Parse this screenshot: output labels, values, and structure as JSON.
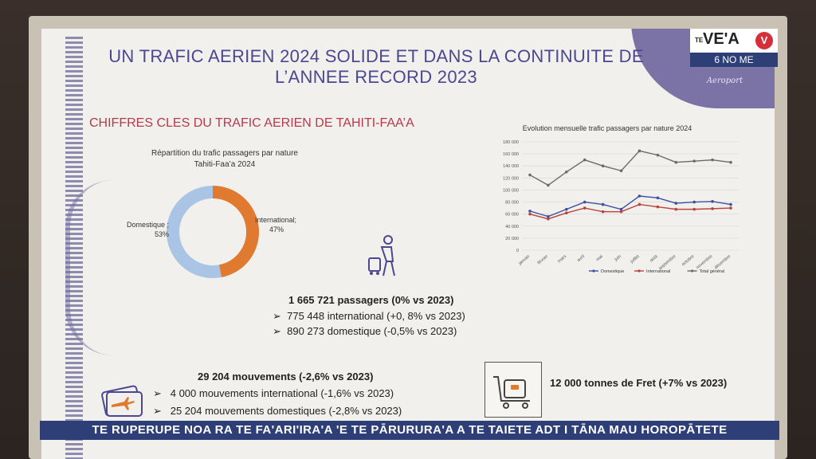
{
  "slide": {
    "title_line1": "UN TRAFIC AERIEN 2024 SOLIDE ET  DANS LA CONTINUITE DE",
    "title_line2": "L’ANNEE RECORD 2023",
    "subtitle": "CHIFFRES CLES DU TRAFIC AERIEN DE TAHITI-FAA’A"
  },
  "stats": {
    "passengers_total": "1 665 721 passagers (0% vs 2023)",
    "passengers_international": "775 448 international (+0, 8% vs 2023)",
    "passengers_domestic": "890 273 domestique (-0,5% vs 2023)",
    "movements_total": "29 204 mouvements (-2,6% vs 2023)",
    "movements_international": "4 000 mouvements international (-1,6% vs 2023)",
    "movements_domestic": "25 204 mouvements domestiques (-2,8% vs 2023)",
    "freight": "12 000 tonnes de Fret (+7% vs 2023)"
  },
  "ticker": "TE RUPERUPE NOA RA TE FA'ARI'IRA'A 'E TE PĀRURURA'A A TE TAIETE ADT I TĀNA MAU HOROPĀTETE",
  "broadcaster": {
    "te": "TE",
    "name": "VE'A",
    "badge": "V",
    "sub": "6 NO ME"
  },
  "colors": {
    "title": "#4b4791",
    "subtitle": "#b53a4e",
    "domestic": "#3f4fa0",
    "international": "#b8433e",
    "total": "#6b6b6b",
    "donut_domestic": "#a9c4e4",
    "donut_international": "#e07a30",
    "ticker_bg": "#2e3f78"
  },
  "chart_data": [
    {
      "type": "pie",
      "title_line1": "Répartition du trafic passagers par nature",
      "title_line2": "Tahiti-Faa’a 2024",
      "slices": [
        {
          "name": "Domestique",
          "value": 53,
          "label_line1": "Domestique ;",
          "label_line2": "53%"
        },
        {
          "name": "International",
          "value": 47,
          "label_line1": "International;",
          "label_line2": "47%"
        }
      ]
    },
    {
      "type": "line",
      "title": "Evolution mensuelle trafic passagers par nature 2024",
      "categories": [
        "janvier",
        "février",
        "mars",
        "avril",
        "mai",
        "juin",
        "juillet",
        "août",
        "septembre",
        "octobre",
        "novembre",
        "décembre"
      ],
      "ylim": [
        0,
        180000
      ],
      "yticks": [
        "0",
        "20 000",
        "40 000",
        "60 000",
        "80 000",
        "100 000",
        "120 000",
        "140 000",
        "160 000",
        "180 000"
      ],
      "grid": true,
      "legend": "bottom",
      "series": [
        {
          "name": "Domestique",
          "values": [
            65000,
            56000,
            68000,
            80000,
            76000,
            68000,
            90000,
            87000,
            78000,
            80000,
            81000,
            76000
          ]
        },
        {
          "name": "International",
          "values": [
            60000,
            52000,
            62000,
            70000,
            64000,
            64000,
            76000,
            72000,
            68000,
            68000,
            69000,
            70000
          ]
        },
        {
          "name": "Total général",
          "values": [
            125000,
            108000,
            130000,
            150000,
            140000,
            132000,
            165000,
            158000,
            146000,
            148000,
            150000,
            146000
          ]
        }
      ]
    }
  ]
}
